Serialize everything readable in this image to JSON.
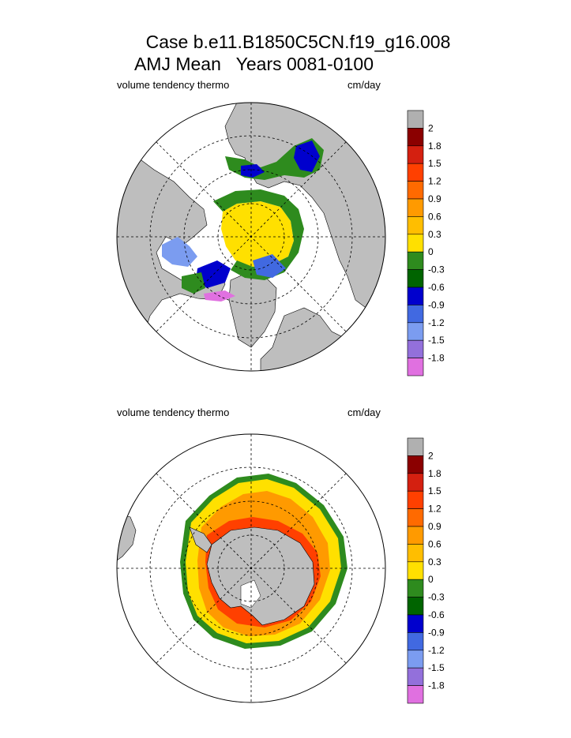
{
  "header": {
    "title_line1": "Case b.e11.B1850C5CN.f19_g16.008",
    "title_line2": "AMJ Mean   Years 0081-0100"
  },
  "panels": [
    {
      "hemisphere": "north",
      "variable_label": "volume tendency thermo",
      "units_label": "cm/day"
    },
    {
      "hemisphere": "south",
      "variable_label": "volume tendency thermo",
      "units_label": "cm/day"
    }
  ],
  "colorbar": {
    "levels": [
      "2",
      "1.8",
      "1.5",
      "1.2",
      "0.9",
      "0.6",
      "0.3",
      "0",
      "-0.3",
      "-0.6",
      "-0.9",
      "-1.2",
      "-1.5",
      "-1.8"
    ],
    "colors": [
      "#b0b0b0",
      "#8b0000",
      "#d42010",
      "#ff4000",
      "#ff6a00",
      "#ff9a00",
      "#ffbe00",
      "#ffe000",
      "#2e8b1e",
      "#006400",
      "#0000cd",
      "#4169e1",
      "#7b9cf0",
      "#9370db",
      "#e070e0"
    ]
  },
  "colors": {
    "land": "#bebebe",
    "ocean": "#ffffff",
    "grid": "#000000"
  }
}
